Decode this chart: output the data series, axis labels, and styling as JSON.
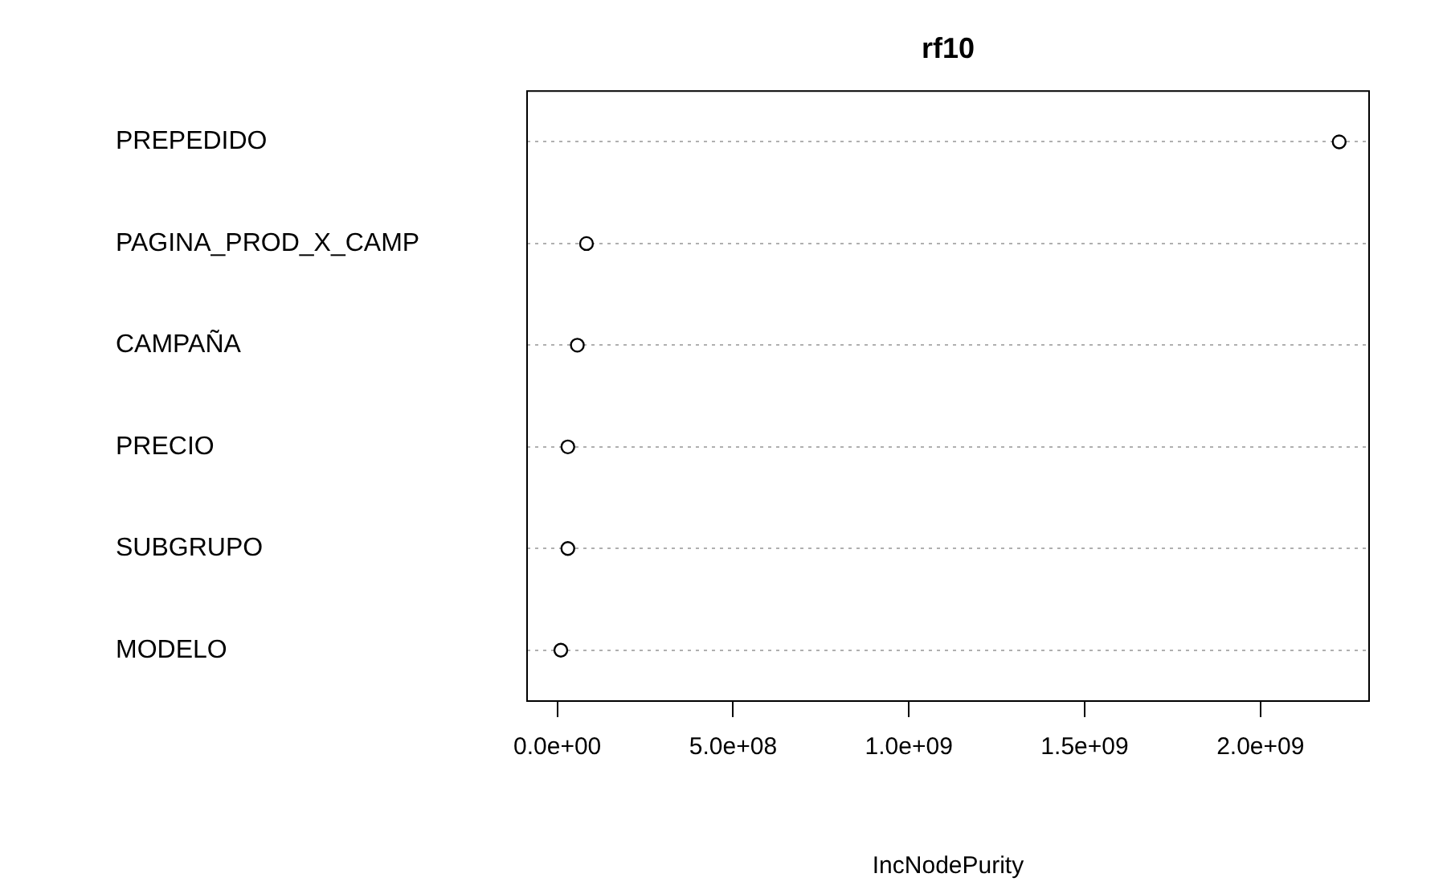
{
  "chart_data": {
    "type": "scatter",
    "title": "rf10",
    "xlabel": "IncNodePurity",
    "orientation": "horizontal",
    "categories": [
      "PREPEDIDO",
      "PAGINA_PROD_X_CAMP",
      "CAMPAÑA",
      "PRECIO",
      "SUBGRUPO",
      "MODELO"
    ],
    "series": [
      {
        "color": "#000000",
        "values": [
          2224000000.0,
          83000000.0,
          57000000.0,
          30000000.0,
          30000000.0,
          10000000.0
        ]
      }
    ],
    "xlim": [
      -86000000.0,
      2309000000.0
    ],
    "xticks": [
      {
        "value": 0,
        "label": "0.0e+00"
      },
      {
        "value": 500000000,
        "label": "5.0e+08"
      },
      {
        "value": 1000000000,
        "label": "1.0e+09"
      },
      {
        "value": 1500000000,
        "label": "1.5e+09"
      },
      {
        "value": 2000000000,
        "label": "2.0e+09"
      }
    ],
    "grid": "y",
    "marker": "circle"
  }
}
